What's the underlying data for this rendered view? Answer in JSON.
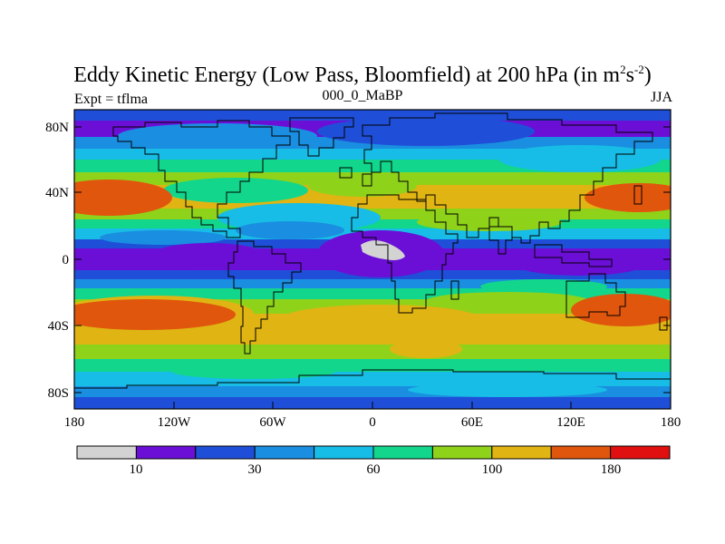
{
  "title": {
    "main": "Eddy Kinetic Energy (Low Pass, Bloomfield) at 200 hPa (in m",
    "sup1": "2",
    "s": "s",
    "sup2": "-2",
    "close": ")"
  },
  "left_label": "Expt = tflma",
  "center_label": "000_0_MaBP",
  "right_label": "JJA",
  "axes": {
    "y_ticks": [
      "80N",
      "40N",
      "0",
      "40S",
      "80S"
    ],
    "x_ticks": [
      "180",
      "120W",
      "60W",
      "0",
      "60E",
      "120E",
      "180"
    ]
  },
  "colorbar": {
    "colors": [
      "#d3d3d3",
      "#6b0fd6",
      "#1f4fd9",
      "#1a8ee0",
      "#17bde6",
      "#12d68c",
      "#8fd21a",
      "#e0b412",
      "#e0560d",
      "#e01010"
    ],
    "labels": [
      "10",
      "30",
      "60",
      "100",
      "180"
    ]
  },
  "palette": {
    "gray": "#d3d3d3",
    "purple": "#6b0fd6",
    "blue": "#1f4fd9",
    "mid_blue": "#1a8ee0",
    "cyan": "#17bde6",
    "teal": "#12d68c",
    "lime": "#8fd21a",
    "yellow": "#e0b412",
    "orange": "#e0560d",
    "red": "#e01010"
  }
}
